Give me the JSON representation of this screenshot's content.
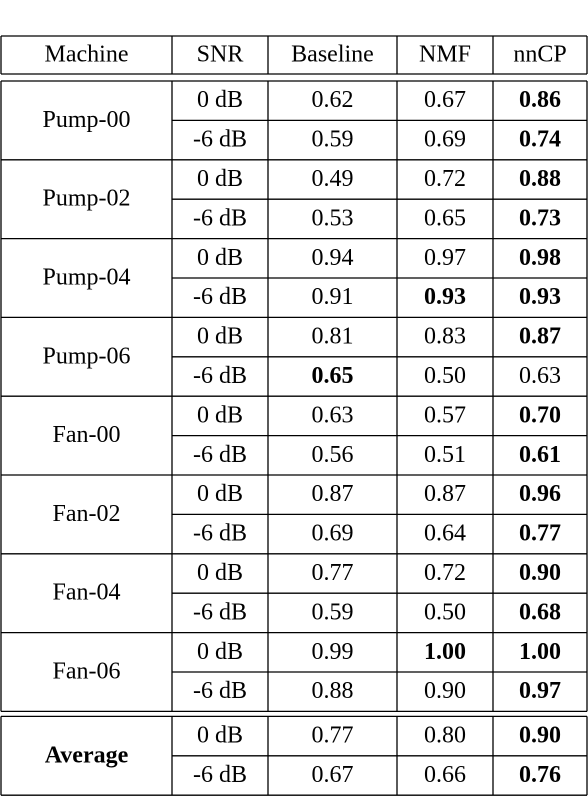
{
  "table": {
    "header": [
      "Machine",
      "SNR",
      "Baseline",
      "NMF",
      "nnCP"
    ],
    "header_colors": [
      "#000000",
      "#000000",
      "#1f1fd6",
      "#4caf22",
      "#f0a020"
    ],
    "groups": [
      {
        "machine": "Pump-00",
        "rows": [
          {
            "snr": "0 dB",
            "values": [
              "0.62",
              "0.67",
              "0.86"
            ],
            "bold": [
              2
            ]
          },
          {
            "snr": "-6 dB",
            "values": [
              "0.59",
              "0.69",
              "0.74"
            ],
            "bold": [
              2
            ]
          }
        ]
      },
      {
        "machine": "Pump-02",
        "rows": [
          {
            "snr": "0 dB",
            "values": [
              "0.49",
              "0.72",
              "0.88"
            ],
            "bold": [
              2
            ]
          },
          {
            "snr": "-6 dB",
            "values": [
              "0.53",
              "0.65",
              "0.73"
            ],
            "bold": [
              2
            ]
          }
        ]
      },
      {
        "machine": "Pump-04",
        "rows": [
          {
            "snr": "0 dB",
            "values": [
              "0.94",
              "0.97",
              "0.98"
            ],
            "bold": [
              2
            ]
          },
          {
            "snr": "-6 dB",
            "values": [
              "0.91",
              "0.93",
              "0.93"
            ],
            "bold": [
              1,
              2
            ]
          }
        ]
      },
      {
        "machine": "Pump-06",
        "rows": [
          {
            "snr": "0 dB",
            "values": [
              "0.81",
              "0.83",
              "0.87"
            ],
            "bold": [
              2
            ]
          },
          {
            "snr": "-6 dB",
            "values": [
              "0.65",
              "0.50",
              "0.63"
            ],
            "bold": [
              0
            ]
          }
        ]
      },
      {
        "machine": "Fan-00",
        "rows": [
          {
            "snr": "0 dB",
            "values": [
              "0.63",
              "0.57",
              "0.70"
            ],
            "bold": [
              2
            ]
          },
          {
            "snr": "-6 dB",
            "values": [
              "0.56",
              "0.51",
              "0.61"
            ],
            "bold": [
              2
            ]
          }
        ]
      },
      {
        "machine": "Fan-02",
        "rows": [
          {
            "snr": "0 dB",
            "values": [
              "0.87",
              "0.87",
              "0.96"
            ],
            "bold": [
              2
            ]
          },
          {
            "snr": "-6 dB",
            "values": [
              "0.69",
              "0.64",
              "0.77"
            ],
            "bold": [
              2
            ]
          }
        ]
      },
      {
        "machine": "Fan-04",
        "rows": [
          {
            "snr": "0 dB",
            "values": [
              "0.77",
              "0.72",
              "0.90"
            ],
            "bold": [
              2
            ]
          },
          {
            "snr": "-6 dB",
            "values": [
              "0.59",
              "0.50",
              "0.68"
            ],
            "bold": [
              2
            ]
          }
        ]
      },
      {
        "machine": "Fan-06",
        "rows": [
          {
            "snr": "0 dB",
            "values": [
              "0.99",
              "1.00",
              "1.00"
            ],
            "bold": [
              1,
              2
            ]
          },
          {
            "snr": "-6 dB",
            "values": [
              "0.88",
              "0.90",
              "0.97"
            ],
            "bold": [
              2
            ]
          }
        ]
      }
    ],
    "summary": {
      "machine": "Average",
      "rows": [
        {
          "snr": "0 dB",
          "values": [
            "0.77",
            "0.80",
            "0.90"
          ],
          "bold": [
            2
          ]
        },
        {
          "snr": "-6 dB",
          "values": [
            "0.67",
            "0.66",
            "0.76"
          ],
          "bold": [
            2
          ]
        }
      ]
    }
  }
}
